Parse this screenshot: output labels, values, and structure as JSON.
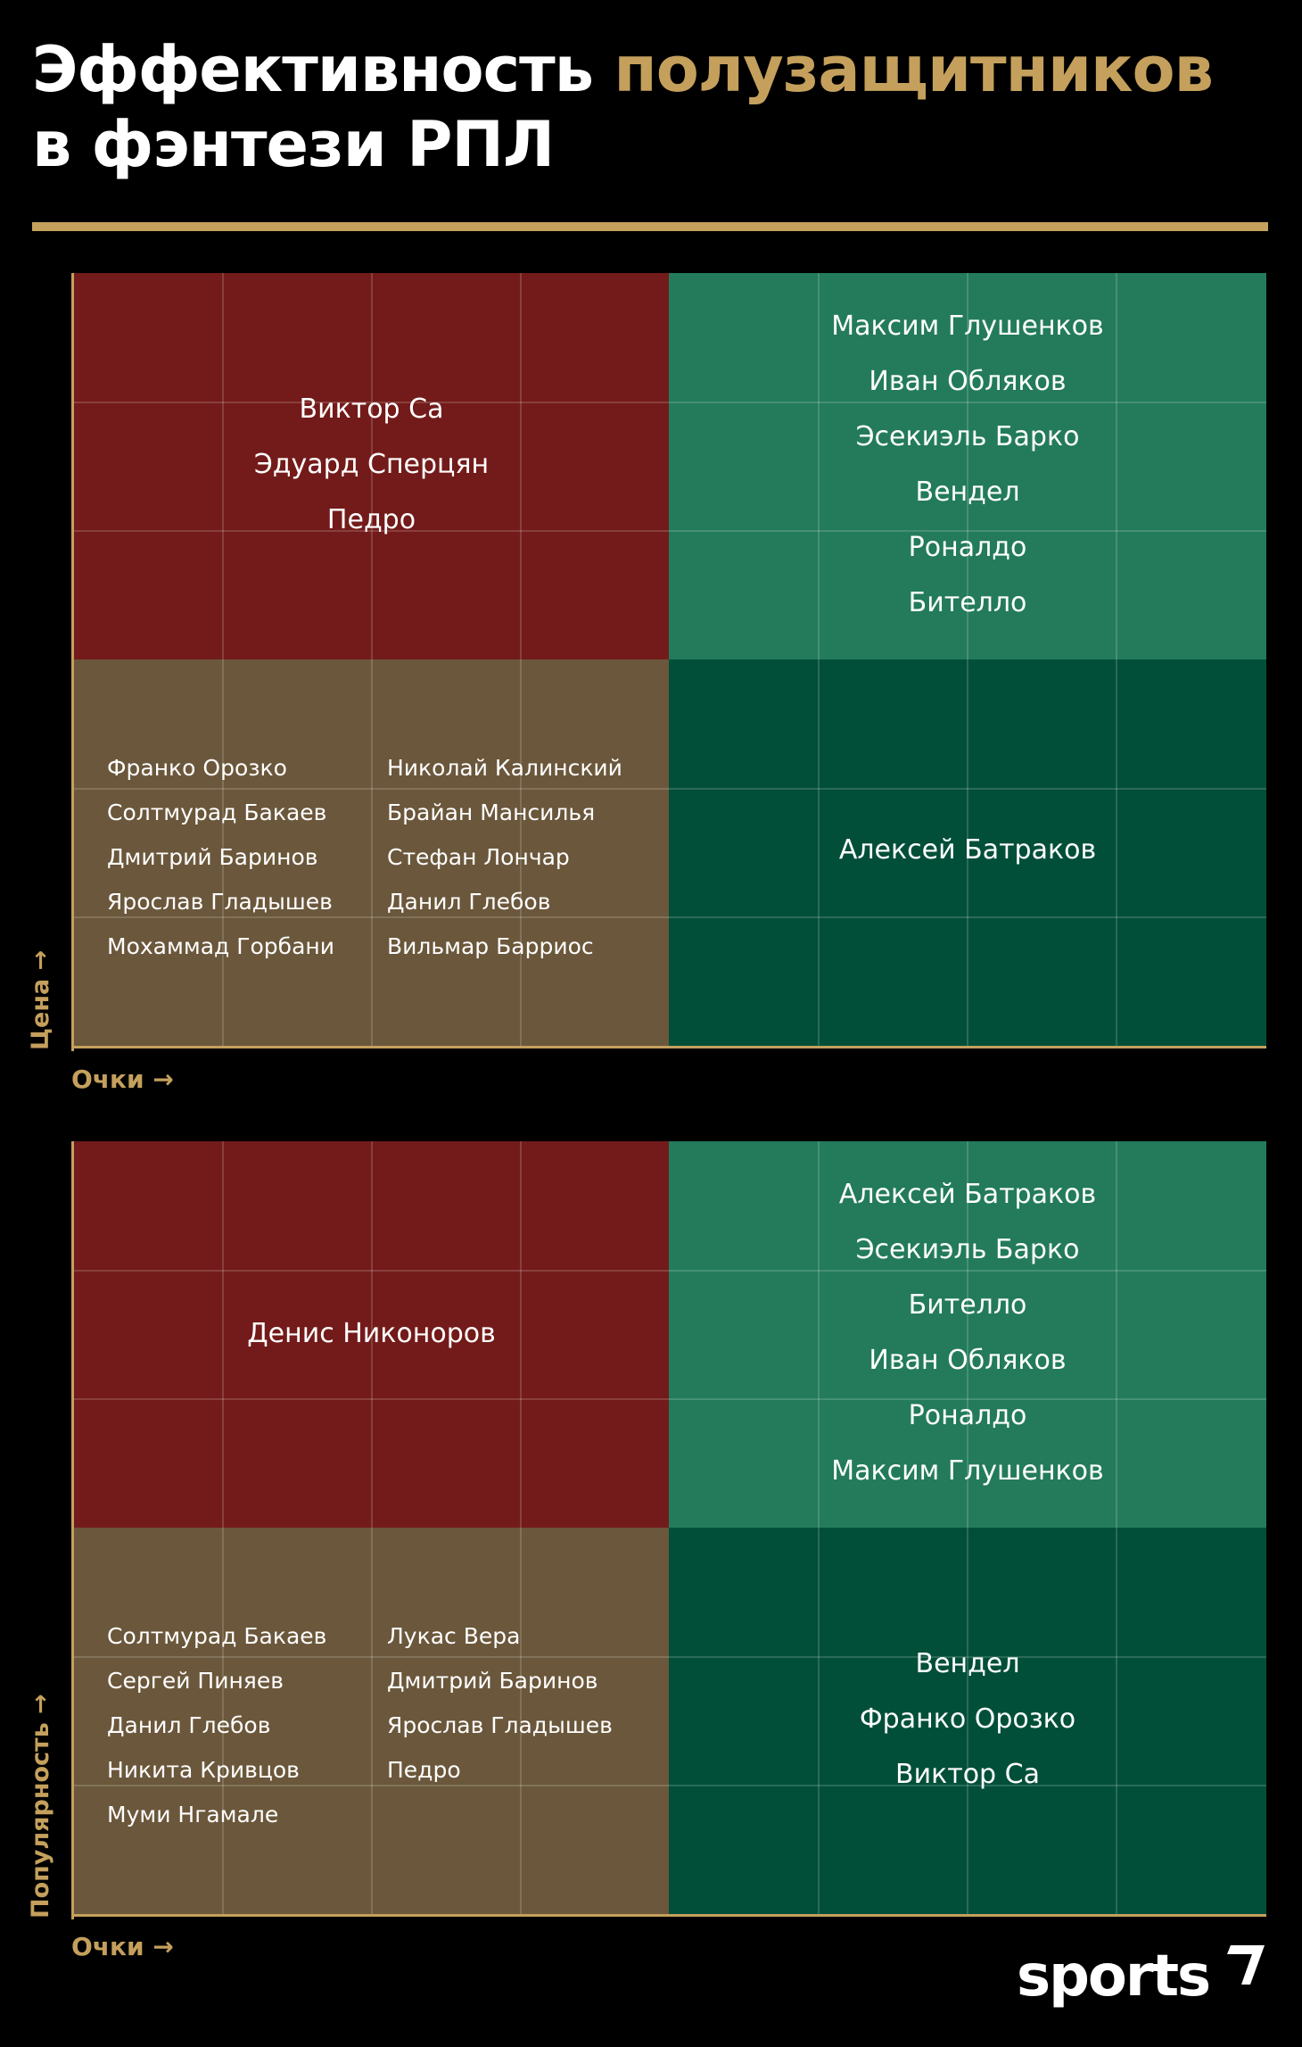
{
  "title": {
    "line1": "Эффективность",
    "accent": "полузащитников",
    "line2": "в фэнтези РПЛ"
  },
  "colors": {
    "accent": "#c4a05c",
    "top_left": "#731b1a",
    "top_right": "#237b5b",
    "bottom_left": "#6b573b",
    "bottom_right": "#024f39",
    "background": "#000000"
  },
  "chart1": {
    "y_axis_label": "Цена →",
    "x_axis_label": "Очки →",
    "top_left": [
      "Виктор Са",
      "Эдуард Сперцян",
      "Педро"
    ],
    "top_right": [
      "Максим Глушенков",
      "Иван Обляков",
      "Эсекиэль Барко",
      "Вендел",
      "Роналдо",
      "Бителло"
    ],
    "bottom_left_col1": [
      "Франко Орозко",
      "Солтмурад Бакаев",
      "Дмитрий Баринов",
      "Ярослав Гладышев",
      "Мохаммад Горбани"
    ],
    "bottom_left_col2": [
      "Николай Калинский",
      "Брайан Мансилья",
      "Стефан Лончар",
      "Данил Глебов",
      "Вильмар Барриос"
    ],
    "bottom_right": [
      "Алексей Батраков"
    ]
  },
  "chart2": {
    "y_axis_label": "Популярность →",
    "x_axis_label": "Очки →",
    "top_left": [
      "Денис Никоноров"
    ],
    "top_right": [
      "Алексей Батраков",
      "Эсекиэль Барко",
      "Бителло",
      "Иван Обляков",
      "Роналдо",
      "Максим Глушенков"
    ],
    "bottom_left_col1": [
      "Солтмурад Бакаев",
      "Сергей Пиняев",
      "Данил Глебов",
      "Никита Кривцов",
      "Муми Нгамале"
    ],
    "bottom_left_col2": [
      "Лукас Вера",
      "Дмитрий Баринов",
      "Ярослав Гладышев",
      "Педро"
    ],
    "bottom_right": [
      "Вендел",
      "Франко Орозко",
      "Виктор Са"
    ]
  },
  "logo": "sports"
}
